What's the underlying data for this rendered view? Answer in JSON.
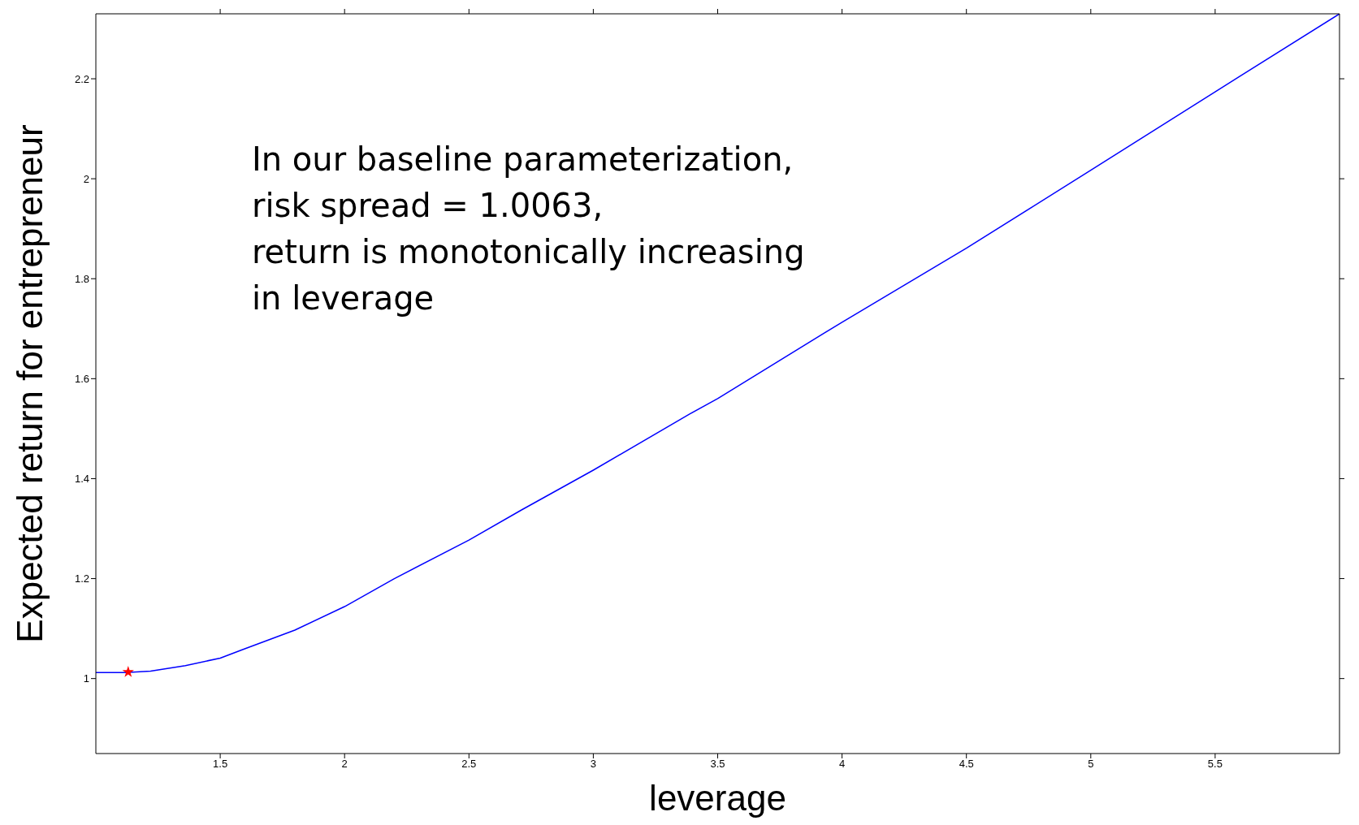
{
  "chart_data": {
    "type": "line",
    "xlabel": "leverage",
    "ylabel": "Expected return for entrepreneur",
    "annotations": [
      "In our baseline parameterization,\nrisk spread = 1.0063,\nreturn is monotonically increasing\nin leverage"
    ],
    "xlim": [
      1,
      6
    ],
    "ylim": [
      0.85,
      2.33
    ],
    "xticks": [
      1.5,
      2,
      2.5,
      3,
      3.5,
      4,
      4.5,
      5,
      5.5
    ],
    "yticks": [
      1,
      1.2,
      1.4,
      1.6,
      1.8,
      2,
      2.2
    ],
    "grid": false,
    "series": [
      {
        "color": "#0000ff",
        "marker": "none",
        "line_style": "solid",
        "x": [
          1,
          1.12,
          1.22,
          1.36,
          1.5,
          1.59,
          1.8,
          2,
          2.2,
          2.5,
          2.71,
          3,
          3.39,
          3.5,
          4,
          4.5,
          5,
          5.5,
          6
        ],
        "values": [
          1.012,
          1.012,
          1.015,
          1.026,
          1.041,
          1.058,
          1.097,
          1.144,
          1.2,
          1.277,
          1.337,
          1.417,
          1.53,
          1.56,
          1.713,
          1.861,
          2.017,
          2.174,
          2.33
        ]
      },
      {
        "type": "scatter",
        "color": "#ff0000",
        "marker": "star",
        "x": [
          1.13
        ],
        "values": [
          1.013
        ]
      }
    ]
  }
}
